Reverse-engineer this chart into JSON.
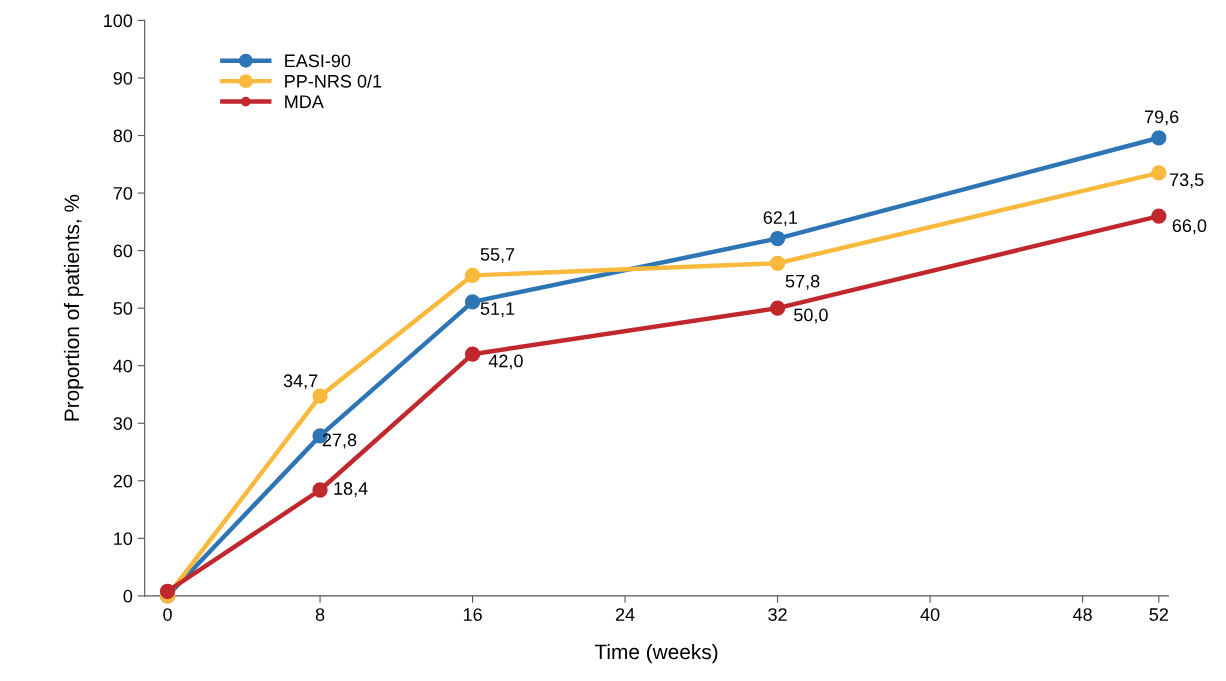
{
  "chart_data": {
    "type": "line",
    "xlabel": "Time (weeks)",
    "ylabel": "Proportion of patients, %",
    "x": [
      0,
      8,
      16,
      32,
      52
    ],
    "series": [
      {
        "name": "EASI-90",
        "color": "#2e75b6",
        "values": [
          0,
          27.8,
          51.1,
          62.1,
          79.6
        ],
        "value_labels": [
          null,
          "27,8",
          "51,1",
          "62,1",
          "79,6"
        ]
      },
      {
        "name": "PP-NRS 0/1",
        "color": "#f9b93c",
        "values": [
          0,
          34.7,
          55.7,
          57.8,
          73.5
        ],
        "value_labels": [
          null,
          "34,7",
          "55,7",
          "57,8",
          "73,5"
        ]
      },
      {
        "name": "MDA",
        "color": "#c0282d",
        "values": [
          0.8,
          18.4,
          42.0,
          50.0,
          66.0
        ],
        "value_labels": [
          null,
          "18,4",
          "42,0",
          "50,0",
          "66,0"
        ]
      }
    ],
    "xlim": [
      -1.2,
      52.5
    ],
    "xticks": [
      0,
      8,
      16,
      24,
      32,
      40,
      48,
      52
    ],
    "ylim": [
      0,
      100
    ],
    "yticks": [
      0,
      10,
      20,
      30,
      40,
      50,
      60,
      70,
      80,
      90,
      100
    ],
    "grid": false,
    "legend": "top left",
    "marker": "circle",
    "line_style": "solid"
  }
}
